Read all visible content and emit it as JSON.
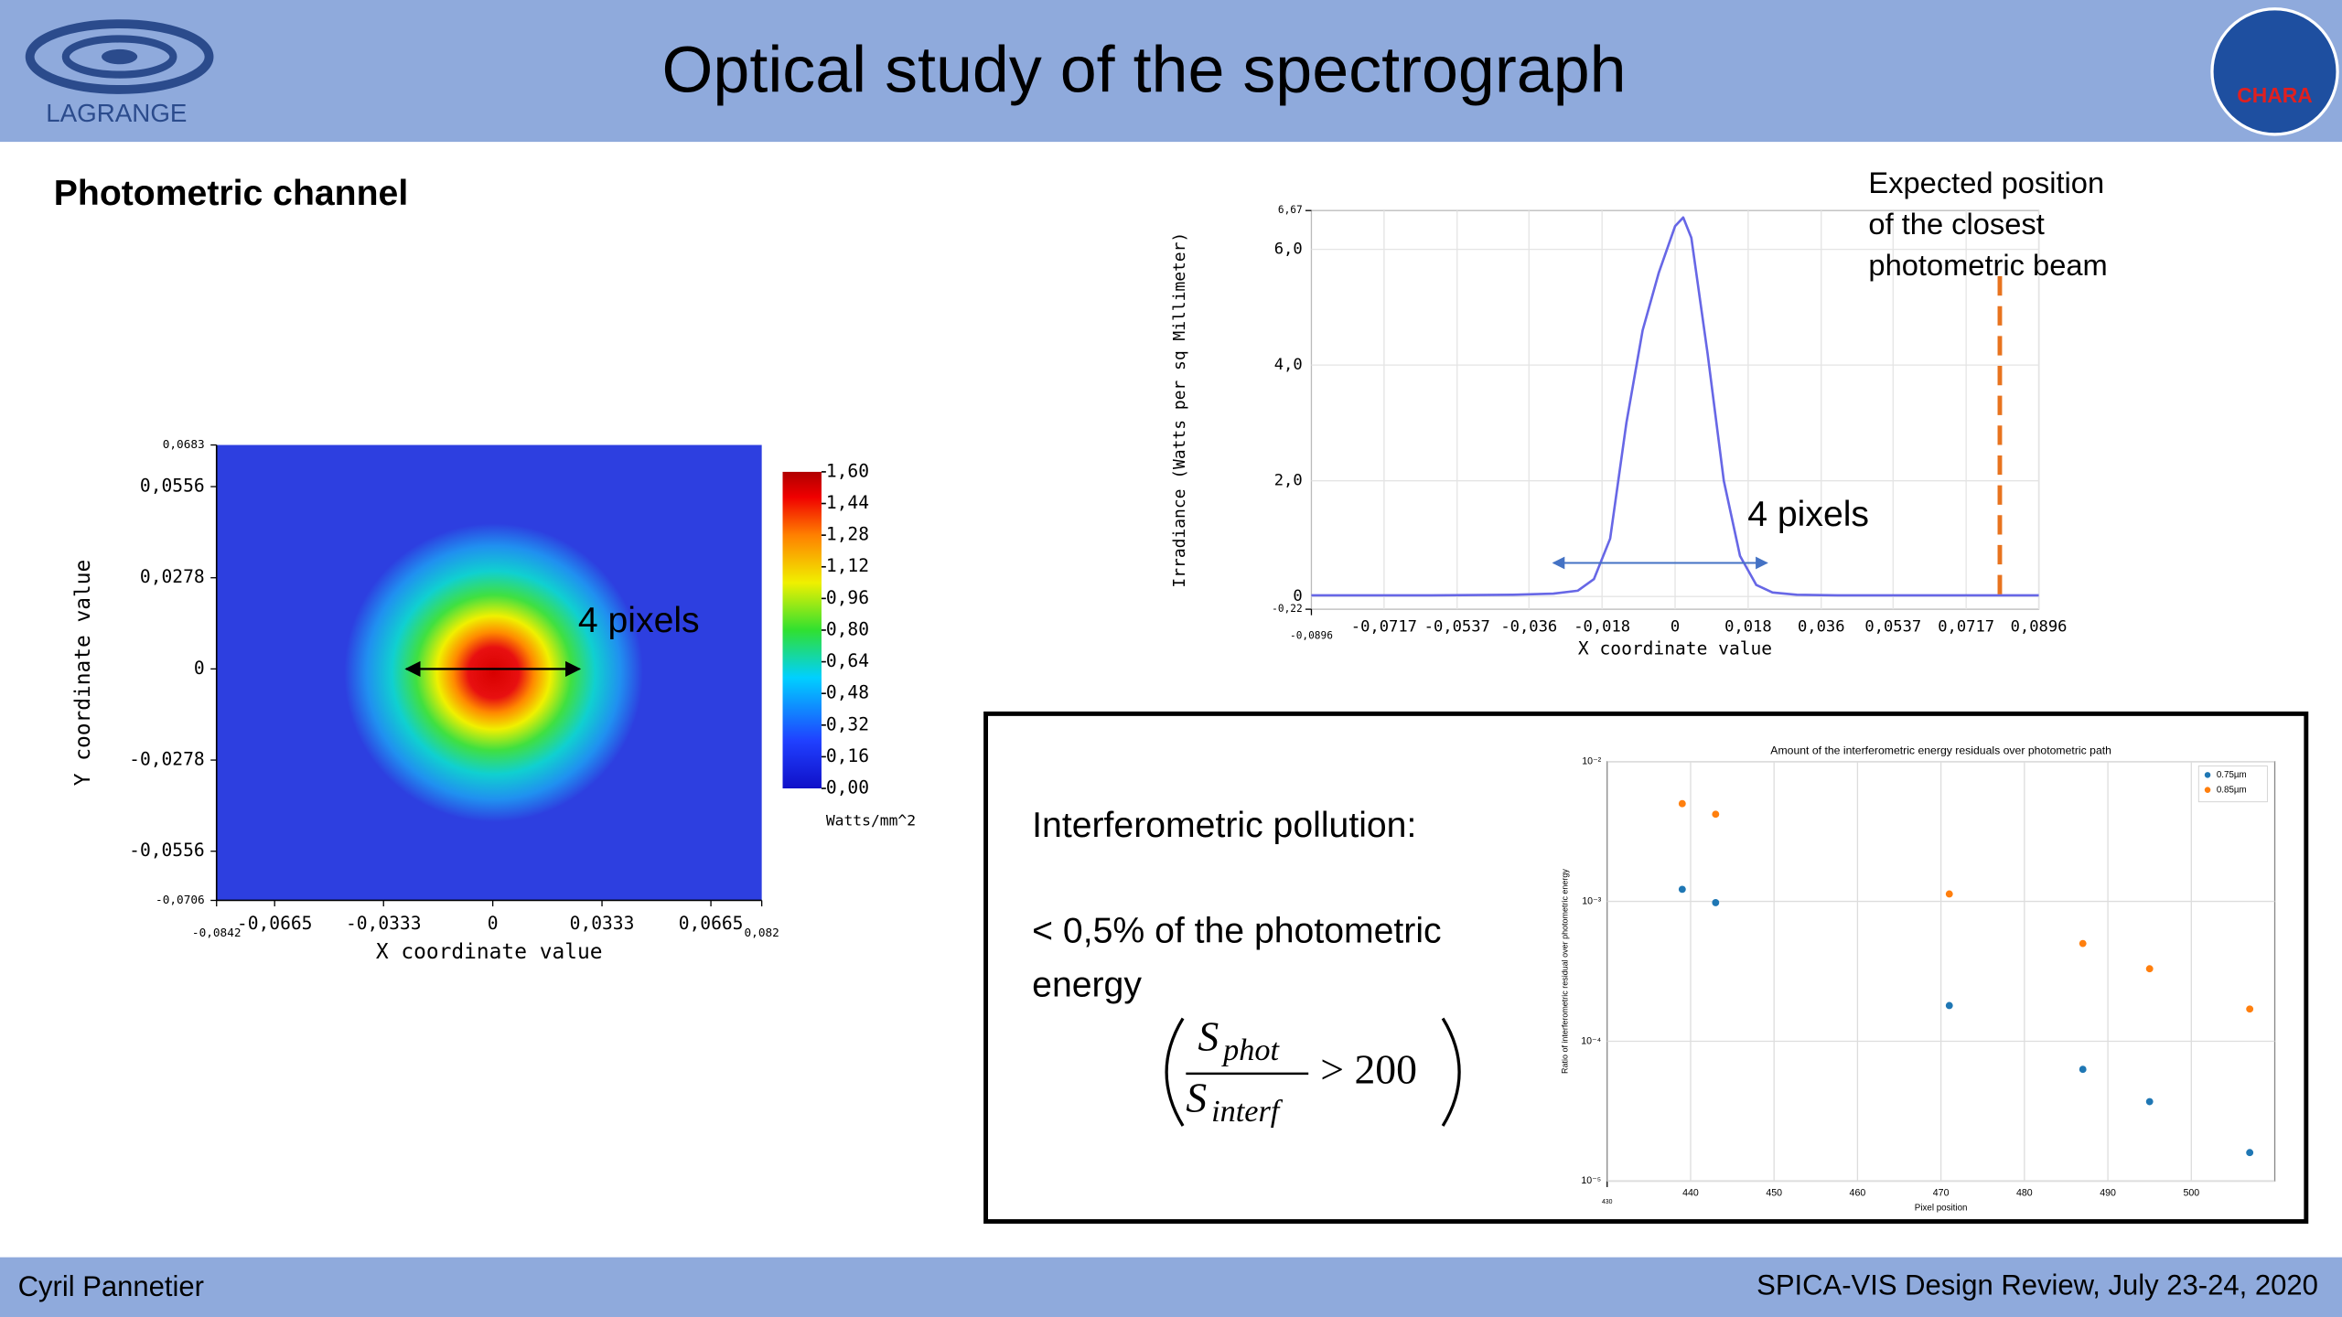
{
  "header": {
    "logo_left": "LAGRANGE",
    "title": "Optical study of the spectrograph",
    "logo_right": "CHARA"
  },
  "section_title": "Photometric channel",
  "chart_data": [
    {
      "type": "heatmap",
      "xlabel": "X coordinate value",
      "ylabel": "Y coordinate value",
      "xlim": [
        -0.0842,
        0.082
      ],
      "xticks": [
        {
          "value": -0.0842,
          "label": "-0,0842"
        },
        {
          "value": -0.0665,
          "label": "-0,0665"
        },
        {
          "value": -0.0333,
          "label": "-0,0333"
        },
        0,
        {
          "value": 0.0333,
          "label": "0,0333"
        },
        {
          "value": 0.0665,
          "label": "0,0665"
        },
        {
          "value": 0.082,
          "label": "0,082"
        }
      ],
      "ylim": [
        -0.0706,
        0.0683
      ],
      "yticks": [
        {
          "value": -0.0706,
          "label": "-0,0706"
        },
        {
          "value": -0.0556,
          "label": "-0,0556"
        },
        {
          "value": -0.0278,
          "label": "-0,0278"
        },
        0,
        {
          "value": 0.0278,
          "label": "0,0278"
        },
        {
          "value": 0.0556,
          "label": "0,0556"
        },
        {
          "value": 0.0683,
          "label": "0,0683"
        }
      ],
      "colorbar": {
        "label": "Watts/mm^2",
        "lim": [
          0,
          1.6
        ],
        "ticks": [
          {
            "value": 0,
            "label": "0,00"
          },
          {
            "value": 0.16,
            "label": "0,16"
          },
          {
            "value": 0.32,
            "label": "0,32"
          },
          {
            "value": 0.48,
            "label": "0,48"
          },
          {
            "value": 0.64,
            "label": "0,64"
          },
          {
            "value": 0.8,
            "label": "0,80"
          },
          {
            "value": 0.96,
            "label": "0,96"
          },
          {
            "value": 1.12,
            "label": "1,12"
          },
          {
            "value": 1.28,
            "label": "1,28"
          },
          {
            "value": 1.44,
            "label": "1,44"
          },
          {
            "value": 1.6,
            "label": "1,60"
          }
        ]
      },
      "annotation": "4 pixels"
    },
    {
      "type": "line",
      "xlabel": "X coordinate value",
      "ylabel": "Irradiance (Watts per sq Millimeter)",
      "x": [
        -0.0896,
        -0.06,
        -0.04,
        -0.03,
        -0.024,
        -0.02,
        -0.016,
        -0.012,
        -0.008,
        -0.004,
        0,
        0.002,
        0.004,
        0.008,
        0.012,
        0.016,
        0.02,
        0.024,
        0.03,
        0.04,
        0.06,
        0.0896
      ],
      "series": [
        {
          "color": "#6767e6",
          "values": [
            0.02,
            0.02,
            0.03,
            0.05,
            0.1,
            0.3,
            1.0,
            3.0,
            4.6,
            5.6,
            6.4,
            6.55,
            6.2,
            4.2,
            2.0,
            0.7,
            0.2,
            0.07,
            0.03,
            0.02,
            0.02,
            0.02
          ]
        }
      ],
      "xlim": [
        -0.0896,
        0.0896
      ],
      "xticks": [
        {
          "value": -0.0896,
          "label": "-0,0896"
        },
        {
          "value": -0.0717,
          "label": "-0,0717"
        },
        {
          "value": -0.0537,
          "label": "-0,0537"
        },
        {
          "value": -0.036,
          "label": "-0,036"
        },
        {
          "value": -0.018,
          "label": "-0,018"
        },
        0,
        {
          "value": 0.018,
          "label": "0,018"
        },
        {
          "value": 0.036,
          "label": "0,036"
        },
        {
          "value": 0.0537,
          "label": "0,0537"
        },
        {
          "value": 0.0717,
          "label": "0,0717"
        },
        {
          "value": 0.0896,
          "label": "0,0896"
        }
      ],
      "ylim": [
        -0.22,
        6.67
      ],
      "yticks": [
        {
          "value": -0.22,
          "label": "-0,22"
        },
        0,
        {
          "value": 2.0,
          "label": "2,0"
        },
        {
          "value": 4.0,
          "label": "4,0"
        },
        {
          "value": 6.0,
          "label": "6,0"
        },
        {
          "value": 6.67,
          "label": "6,67"
        }
      ],
      "grid": true,
      "annotation": "4 pixels",
      "marker": {
        "x": 0.08,
        "color": "#e8731e",
        "text": [
          "Expected position",
          "of the closest",
          "photometric beam"
        ]
      }
    },
    {
      "type": "scatter",
      "title": "Amount of the interferometric energy residuals over photometric path",
      "xlabel": "Pixel position",
      "ylabel": "Ratio of interferometric residual over photometric energy",
      "x": [
        439,
        443,
        471,
        487,
        495,
        507
      ],
      "series": [
        {
          "name": "0.75µm",
          "color": "#1f77b4",
          "values": [
            0.00122,
            0.00098,
            0.00018,
            6.3e-05,
            3.7e-05,
            1.6e-05
          ]
        },
        {
          "name": "0.85µm",
          "color": "#ff7f0e",
          "values": [
            0.005,
            0.0042,
            0.00113,
            0.0005,
            0.00033,
            0.00017
          ]
        }
      ],
      "xlim": [
        430,
        510
      ],
      "xticks": [
        430,
        440,
        450,
        460,
        470,
        480,
        490,
        500
      ],
      "ylim": [
        1e-05,
        0.01
      ],
      "log_y": true,
      "yticks": [
        {
          "value": 1e-05,
          "label": "10⁻⁵"
        },
        {
          "value": 0.0001,
          "label": "10⁻⁴"
        },
        {
          "value": 0.001,
          "label": "10⁻³"
        },
        {
          "value": 0.01,
          "label": "10⁻²"
        }
      ],
      "grid": true,
      "legend": "upper right"
    }
  ],
  "text_box": {
    "heading": "Interferometric pollution:",
    "lines": [
      "< 0,5% of the photometric",
      "energy"
    ],
    "formula": {
      "numerator": "S",
      "numerator_sub": "phot",
      "denominator": "S",
      "denominator_sub": "interf",
      "relation": "> 200"
    }
  },
  "footer": {
    "left": "Cyril Pannetier",
    "right": "SPICA-VIS Design Review, July 23-24, 2020"
  }
}
